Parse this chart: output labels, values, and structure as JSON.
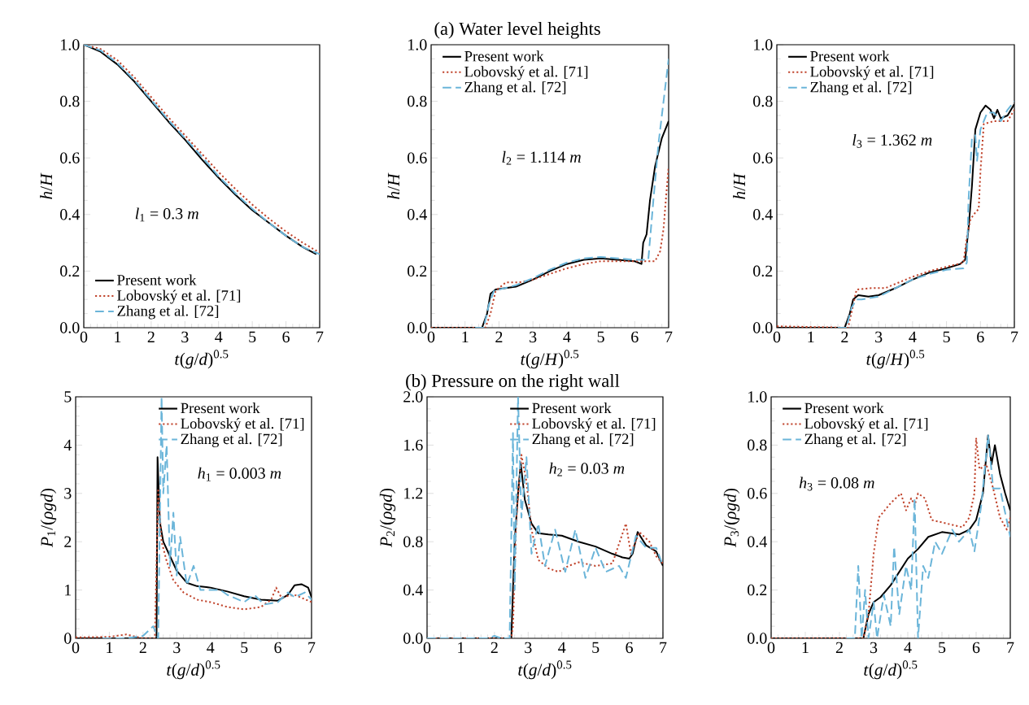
{
  "chart_data": [
    {
      "type": "line",
      "xlabel": "*t*(*g*/*d*)$^{0.5}$",
      "ylabel": "*h*/*H*",
      "xlim": [
        0,
        7
      ],
      "ylim": [
        0,
        1
      ],
      "xticks": [
        0,
        1,
        2,
        3,
        4,
        5,
        6,
        7
      ],
      "yticks": [
        {
          "value": 0,
          "label": "0.0"
        },
        {
          "value": 0.2,
          "label": "0.2"
        },
        {
          "value": 0.4,
          "label": "0.4"
        },
        {
          "value": 0.6,
          "label": "0.6"
        },
        {
          "value": 0.8,
          "label": "0.8"
        },
        {
          "value": 1,
          "label": "1.0"
        }
      ],
      "legend": "bottom left",
      "annotations": [
        "*l*$_{1}$ = 0.3 *m*"
      ],
      "series": [
        {
          "name": "Present work",
          "color": "#000000",
          "line_style": "solid",
          "x": [
            0,
            0.5,
            1,
            1.5,
            2,
            2.5,
            3,
            3.5,
            4,
            4.5,
            5,
            5.5,
            6,
            6.5,
            6.9
          ],
          "values": [
            1.0,
            0.975,
            0.93,
            0.87,
            0.8,
            0.73,
            0.665,
            0.595,
            0.53,
            0.47,
            0.415,
            0.37,
            0.325,
            0.285,
            0.26
          ]
        },
        {
          "name": "Lobovský et al. [71]",
          "color": "#c0432b",
          "line_style": "dotted",
          "x": [
            0,
            0.5,
            1,
            1.5,
            2,
            2.5,
            3,
            3.5,
            4,
            4.5,
            5,
            5.5,
            6,
            6.5,
            7
          ],
          "values": [
            1.0,
            0.985,
            0.945,
            0.885,
            0.815,
            0.745,
            0.68,
            0.615,
            0.55,
            0.49,
            0.435,
            0.385,
            0.34,
            0.3,
            0.265
          ]
        },
        {
          "name": "Zhang et al. [72]",
          "color": "#6bb5d9",
          "line_style": "dashed",
          "x": [
            0,
            0.5,
            1,
            1.5,
            2,
            2.5,
            3,
            3.5,
            4,
            4.5,
            5,
            5.5,
            6,
            6.5,
            7
          ],
          "values": [
            1.0,
            0.98,
            0.935,
            0.875,
            0.805,
            0.735,
            0.67,
            0.605,
            0.535,
            0.475,
            0.42,
            0.37,
            0.325,
            0.285,
            0.26
          ]
        }
      ]
    },
    {
      "type": "line",
      "title": "(a)  Water level heights",
      "xlabel": "*t*(*g*/*H*)$^{0.5}$",
      "ylabel": "*h*/*H*",
      "xlim": [
        0,
        7
      ],
      "ylim": [
        0,
        1
      ],
      "xticks": [
        0,
        1,
        2,
        3,
        4,
        5,
        6,
        7
      ],
      "yticks": [
        {
          "value": 0,
          "label": "0.0"
        },
        {
          "value": 0.2,
          "label": "0.2"
        },
        {
          "value": 0.4,
          "label": "0.4"
        },
        {
          "value": 0.6,
          "label": "0.6"
        },
        {
          "value": 0.8,
          "label": "0.8"
        },
        {
          "value": 1,
          "label": "1.0"
        }
      ],
      "legend": "top left",
      "annotations": [
        "*l*$_{2}$ = 1.114 *m*"
      ],
      "series": [
        {
          "name": "Present work",
          "color": "#000000",
          "line_style": "solid",
          "x": [
            0,
            1.5,
            1.65,
            1.75,
            1.9,
            2.5,
            3,
            3.5,
            4,
            4.5,
            5,
            5.5,
            6,
            6.2,
            6.25,
            6.35,
            6.45,
            6.6,
            6.8,
            7
          ],
          "values": [
            0,
            0,
            0.05,
            0.12,
            0.135,
            0.145,
            0.17,
            0.2,
            0.225,
            0.24,
            0.245,
            0.24,
            0.235,
            0.225,
            0.3,
            0.33,
            0.45,
            0.57,
            0.67,
            0.73
          ]
        },
        {
          "name": "Lobovský et al. [71]",
          "color": "#c0432b",
          "line_style": "dotted",
          "x": [
            0,
            1.6,
            1.75,
            1.9,
            2.2,
            2.6,
            3,
            3.5,
            4,
            4.5,
            5,
            5.5,
            6,
            6.6,
            6.75,
            6.85,
            6.95,
            7
          ],
          "values": [
            0,
            0,
            0.05,
            0.13,
            0.16,
            0.16,
            0.17,
            0.19,
            0.21,
            0.225,
            0.235,
            0.235,
            0.235,
            0.235,
            0.27,
            0.35,
            0.5,
            0.57
          ]
        },
        {
          "name": "Zhang et al. [72]",
          "color": "#6bb5d9",
          "line_style": "dashed",
          "x": [
            1.3,
            1.55,
            1.7,
            1.85,
            2.5,
            3,
            3.5,
            4,
            4.5,
            5,
            5.5,
            6,
            6.4,
            6.55,
            6.7,
            6.85,
            7
          ],
          "values": [
            0,
            0,
            0.08,
            0.13,
            0.15,
            0.175,
            0.205,
            0.23,
            0.245,
            0.25,
            0.245,
            0.24,
            0.24,
            0.45,
            0.65,
            0.8,
            0.95
          ]
        }
      ]
    },
    {
      "type": "line",
      "xlabel": "*t*(*g*/*H*)$^{0.5}$",
      "ylabel": "*h*/*H*",
      "xlim": [
        0,
        7
      ],
      "ylim": [
        0,
        1
      ],
      "xticks": [
        0,
        1,
        2,
        3,
        4,
        5,
        6,
        7
      ],
      "yticks": [
        {
          "value": 0,
          "label": "0.0"
        },
        {
          "value": 0.2,
          "label": "0.2"
        },
        {
          "value": 0.4,
          "label": "0.4"
        },
        {
          "value": 0.6,
          "label": "0.6"
        },
        {
          "value": 0.8,
          "label": "0.8"
        },
        {
          "value": 1,
          "label": "1.0"
        }
      ],
      "legend": "top left",
      "annotations": [
        "*l*$_{3}$ = 1.362 *m*"
      ],
      "series": [
        {
          "name": "Present work",
          "color": "#000000",
          "line_style": "solid",
          "x": [
            0,
            2,
            2.15,
            2.25,
            2.4,
            2.7,
            3,
            3.5,
            4,
            4.5,
            5,
            5.4,
            5.55,
            5.65,
            5.75,
            5.85,
            6,
            6.15,
            6.3,
            6.4,
            6.5,
            6.6,
            6.8,
            7
          ],
          "values": [
            0,
            0,
            0.05,
            0.1,
            0.115,
            0.11,
            0.115,
            0.14,
            0.17,
            0.195,
            0.21,
            0.225,
            0.24,
            0.35,
            0.5,
            0.7,
            0.76,
            0.785,
            0.77,
            0.74,
            0.77,
            0.74,
            0.75,
            0.79
          ]
        },
        {
          "name": "Lobovský et al. [71]",
          "color": "#c0432b",
          "line_style": "dotted",
          "x": [
            0,
            2.1,
            2.25,
            2.35,
            2.8,
            3.2,
            3.6,
            4,
            4.5,
            5,
            5.5,
            5.6,
            5.7,
            5.8,
            5.95,
            6.0,
            6.1,
            6.4,
            6.8,
            7
          ],
          "values": [
            0.005,
            0,
            0.08,
            0.135,
            0.14,
            0.14,
            0.16,
            0.18,
            0.2,
            0.215,
            0.23,
            0.32,
            0.38,
            0.4,
            0.42,
            0.55,
            0.72,
            0.73,
            0.73,
            0.77
          ]
        },
        {
          "name": "Zhang et al. [72]",
          "color": "#6bb5d9",
          "line_style": "dashed",
          "x": [
            1.8,
            2.05,
            2.2,
            2.35,
            2.5,
            3,
            3.5,
            4,
            4.5,
            5,
            5.5,
            5.6,
            5.65,
            5.75,
            5.85,
            5.9,
            6.0,
            6.2,
            6.4,
            6.6,
            6.8,
            7
          ],
          "values": [
            0,
            0,
            0.07,
            0.1,
            0.1,
            0.11,
            0.14,
            0.17,
            0.19,
            0.205,
            0.21,
            0.23,
            0.45,
            0.67,
            0.68,
            0.59,
            0.7,
            0.76,
            0.76,
            0.73,
            0.77,
            0.8
          ]
        }
      ]
    },
    {
      "type": "line",
      "xlabel": "*t*(*g*/*d*)$^{0.5}$",
      "ylabel": "*P*$_{1}$/(*ρgd*)",
      "xlim": [
        0,
        7
      ],
      "ylim": [
        0,
        5
      ],
      "xticks": [
        0,
        1,
        2,
        3,
        4,
        5,
        6,
        7
      ],
      "yticks": [
        0,
        1,
        2,
        3,
        4,
        5
      ],
      "legend": "top right",
      "annotations": [
        "*h*$_{1}$ = 0.003 *m*"
      ],
      "series": [
        {
          "name": "Present work",
          "color": "#000000",
          "line_style": "solid",
          "x": [
            0,
            2.4,
            2.43,
            2.5,
            2.6,
            2.8,
            3,
            3.3,
            3.6,
            4,
            4.5,
            5,
            5.5,
            6,
            6.3,
            6.5,
            6.7,
            6.9,
            7
          ],
          "values": [
            0,
            0,
            3.75,
            2.4,
            2.0,
            1.7,
            1.4,
            1.15,
            1.08,
            1.05,
            0.97,
            0.87,
            0.8,
            0.78,
            0.9,
            1.1,
            1.12,
            1.05,
            0.85
          ]
        },
        {
          "name": "Lobovský et al. [71]",
          "color": "#c0432b",
          "line_style": "dotted",
          "x": [
            0,
            1,
            1.5,
            2.0,
            2.35,
            2.45,
            2.55,
            2.7,
            2.9,
            3.2,
            3.6,
            4,
            4.5,
            5,
            5.5,
            5.8,
            5.95,
            6.1,
            6.5,
            7
          ],
          "values": [
            0.02,
            0.03,
            0.08,
            0,
            0,
            3.1,
            2.0,
            1.6,
            1.2,
            0.95,
            0.8,
            0.75,
            0.65,
            0.6,
            0.65,
            0.8,
            1.05,
            0.85,
            0.9,
            0.75
          ]
        },
        {
          "name": "Zhang et al. [72]",
          "color": "#6bb5d9",
          "line_style": "dashed",
          "x": [
            0.8,
            1.5,
            2,
            2.3,
            2.45,
            2.55,
            2.6,
            2.7,
            2.8,
            2.9,
            3.0,
            3.1,
            3.3,
            3.5,
            3.7,
            4.0,
            4.3,
            4.5,
            5,
            5.3,
            5.6,
            6,
            6.3,
            6.5,
            6.8,
            7
          ],
          "values": [
            0,
            0,
            0.05,
            0.25,
            0,
            5.0,
            3.0,
            4.0,
            1.5,
            2.6,
            1.3,
            2.1,
            1.1,
            1.5,
            1.0,
            1.0,
            1.0,
            0.9,
            0.75,
            0.9,
            0.7,
            0.75,
            0.95,
            0.85,
            0.95,
            0.8
          ]
        }
      ]
    },
    {
      "type": "line",
      "title": "(b)  Pressure on the right wall",
      "xlabel": "*t*(*g*/*d*)$^{0.5}$",
      "ylabel": "*P*$_{2}$/(*ρgd*)",
      "xlim": [
        0,
        7
      ],
      "ylim": [
        0,
        2
      ],
      "xticks": [
        0,
        1,
        2,
        3,
        4,
        5,
        6,
        7
      ],
      "yticks": [
        {
          "value": 0,
          "label": "0.0"
        },
        {
          "value": 0.4,
          "label": "0.4"
        },
        {
          "value": 0.8,
          "label": "0.8"
        },
        {
          "value": 1.2,
          "label": "1.2"
        },
        {
          "value": 1.6,
          "label": "1.6"
        },
        {
          "value": 2,
          "label": "2.0"
        }
      ],
      "legend": "top right",
      "annotations": [
        "*h*$_{2}$ = 0.03 *m*"
      ],
      "series": [
        {
          "name": "Present work",
          "color": "#000000",
          "line_style": "solid",
          "x": [
            0,
            2.5,
            2.6,
            2.7,
            2.78,
            2.9,
            3.1,
            3.3,
            3.6,
            4,
            4.5,
            5,
            5.5,
            5.8,
            6,
            6.1,
            6.25,
            6.5,
            6.8,
            7
          ],
          "values": [
            0,
            0,
            0.8,
            1.2,
            1.45,
            1.15,
            0.95,
            0.87,
            0.86,
            0.85,
            0.8,
            0.76,
            0.7,
            0.67,
            0.66,
            0.7,
            0.88,
            0.77,
            0.72,
            0.6
          ]
        },
        {
          "name": "Lobovský et al. [71]",
          "color": "#c0432b",
          "line_style": "dotted",
          "x": [
            0,
            2.5,
            2.55,
            2.65,
            2.8,
            2.95,
            3.1,
            3.3,
            3.6,
            3.9,
            4.2,
            4.5,
            5,
            5.5,
            5.9,
            6.05,
            6.3,
            6.6,
            6.8,
            7
          ],
          "values": [
            0,
            0,
            0.1,
            1.0,
            1.52,
            1.3,
            0.9,
            0.65,
            0.58,
            0.55,
            0.6,
            0.63,
            0.6,
            0.62,
            0.95,
            0.7,
            0.88,
            0.8,
            0.68,
            0.62
          ]
        },
        {
          "name": "Zhang et al. [72]",
          "color": "#6bb5d9",
          "line_style": "dashed",
          "x": [
            0,
            1.8,
            2.0,
            2.2,
            2.45,
            2.55,
            2.6,
            2.7,
            2.8,
            2.95,
            3.1,
            3.3,
            3.5,
            3.8,
            4.1,
            4.4,
            4.7,
            5.0,
            5.3,
            5.7,
            5.9,
            6.2,
            6.5,
            6.8,
            7
          ],
          "values": [
            0,
            0,
            0.02,
            0,
            0,
            1.7,
            0.4,
            2.0,
            1.0,
            1.5,
            0.7,
            0.95,
            0.6,
            0.9,
            0.55,
            0.9,
            0.5,
            0.75,
            0.55,
            0.6,
            0.5,
            0.85,
            0.75,
            0.75,
            0.6
          ]
        }
      ]
    },
    {
      "type": "line",
      "xlabel": "*t*(*g*/*d*)$^{0.5}$",
      "ylabel": "*P*$_{3}$/(*ρgd*)",
      "xlim": [
        0,
        7
      ],
      "ylim": [
        0,
        1
      ],
      "xticks": [
        0,
        1,
        2,
        3,
        4,
        5,
        6,
        7
      ],
      "yticks": [
        {
          "value": 0,
          "label": "0.0"
        },
        {
          "value": 0.2,
          "label": "0.2"
        },
        {
          "value": 0.4,
          "label": "0.4"
        },
        {
          "value": 0.6,
          "label": "0.6"
        },
        {
          "value": 0.8,
          "label": "0.8"
        },
        {
          "value": 1,
          "label": "1.0"
        }
      ],
      "legend": "top left",
      "annotations": [
        "*h*$_{3}$ = 0.08 *m*"
      ],
      "series": [
        {
          "name": "Present work",
          "color": "#000000",
          "line_style": "solid",
          "x": [
            0,
            2.7,
            2.85,
            3.0,
            3.2,
            3.5,
            4,
            4.3,
            4.6,
            5,
            5.5,
            5.8,
            6,
            6.2,
            6.35,
            6.45,
            6.55,
            6.7,
            6.85,
            7
          ],
          "values": [
            0,
            0,
            0.1,
            0.15,
            0.17,
            0.22,
            0.33,
            0.37,
            0.42,
            0.44,
            0.43,
            0.45,
            0.49,
            0.6,
            0.84,
            0.72,
            0.8,
            0.68,
            0.6,
            0.53
          ]
        },
        {
          "name": "Lobovský et al. [71]",
          "color": "#c0432b",
          "line_style": "dotted",
          "x": [
            0,
            2.7,
            2.85,
            3.0,
            3.15,
            3.5,
            3.8,
            3.95,
            4.1,
            4.2,
            4.3,
            4.5,
            4.7,
            5.0,
            5.3,
            5.6,
            5.8,
            5.95,
            6.0,
            6.1,
            6.3,
            6.5,
            6.7,
            6.9,
            7
          ],
          "values": [
            0,
            0,
            0.1,
            0.35,
            0.5,
            0.56,
            0.6,
            0.53,
            0.58,
            0.55,
            0.6,
            0.58,
            0.49,
            0.48,
            0.47,
            0.46,
            0.5,
            0.6,
            0.83,
            0.7,
            0.72,
            0.62,
            0.5,
            0.45,
            0.5
          ]
        },
        {
          "name": "Zhang et al. [72]",
          "color": "#6bb5d9",
          "line_style": "dashed",
          "x": [
            2.2,
            2.45,
            2.55,
            2.65,
            2.75,
            2.85,
            3.0,
            3.1,
            3.3,
            3.5,
            3.6,
            3.75,
            3.95,
            4.1,
            4.2,
            4.3,
            4.45,
            4.6,
            4.8,
            5.0,
            5.3,
            5.5,
            5.8,
            5.95,
            6.15,
            6.35,
            6.5,
            6.7,
            7
          ],
          "values": [
            0,
            0,
            0.3,
            0,
            0.2,
            0,
            0.15,
            0,
            0.18,
            0.05,
            0.38,
            0.1,
            0.3,
            0.2,
            0.58,
            0,
            0.3,
            0.25,
            0.4,
            0.35,
            0.45,
            0.4,
            0.45,
            0.36,
            0.55,
            0.84,
            0.62,
            0.62,
            0.42
          ]
        }
      ]
    }
  ]
}
